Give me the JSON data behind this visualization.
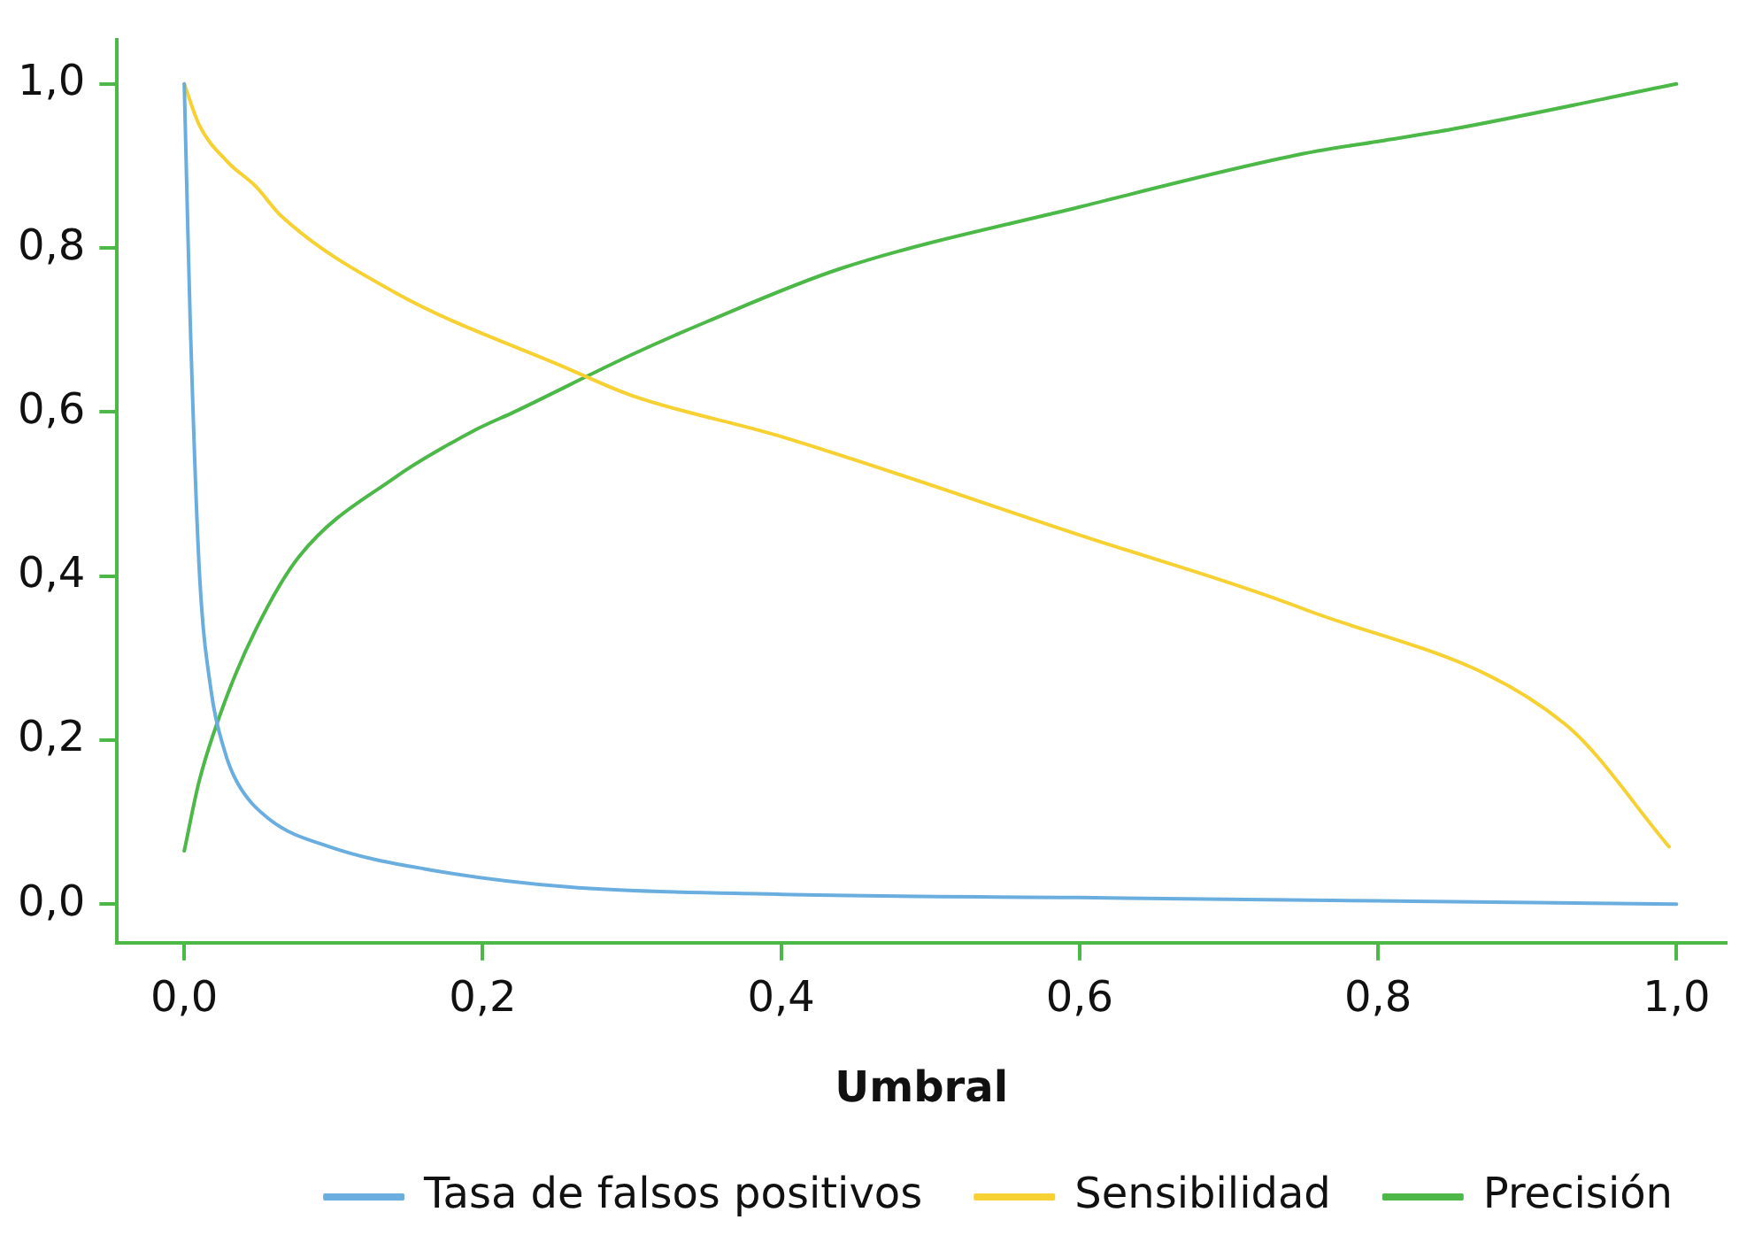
{
  "chart_data": {
    "type": "line",
    "xlabel": "Umbral",
    "xlim": [
      -0.045,
      1.033
    ],
    "ylim": [
      -0.047,
      1.054
    ],
    "xticks": [
      {
        "value": 0,
        "label": "0,0"
      },
      {
        "value": 0.2,
        "label": "0,2"
      },
      {
        "value": 0.4,
        "label": "0,4"
      },
      {
        "value": 0.6,
        "label": "0,6"
      },
      {
        "value": 0.8,
        "label": "0,8"
      },
      {
        "value": 1,
        "label": "1,0"
      }
    ],
    "yticks": [
      {
        "value": 0,
        "label": "0,0"
      },
      {
        "value": 0.2,
        "label": "0,2"
      },
      {
        "value": 0.4,
        "label": "0,4"
      },
      {
        "value": 0.6,
        "label": "0,6"
      },
      {
        "value": 0.8,
        "label": "0,8"
      },
      {
        "value": 1,
        "label": "1,0"
      }
    ],
    "grid": false,
    "legend": "bottom",
    "marker": "none",
    "line_style": "solid",
    "series": [
      {
        "name": "Tasa de falsos positivos",
        "color": "#6aaee0",
        "x": [
          0,
          0.002,
          0.004,
          0.01,
          0.018,
          0.027,
          0.035,
          0.056,
          0.099,
          0.161,
          0.257,
          0.4,
          0.6,
          0.8,
          1.0
        ],
        "values": [
          1.0,
          0.85,
          0.71,
          0.41,
          0.26,
          0.187,
          0.15,
          0.105,
          0.069,
          0.043,
          0.021,
          0.012,
          0.008,
          0.004,
          0.0
        ]
      },
      {
        "name": "Sensibilidad",
        "color": "#f7d031",
        "x": [
          0,
          0.01,
          0.029,
          0.048,
          0.065,
          0.141,
          0.257,
          0.3,
          0.4,
          0.6,
          0.75,
          0.925,
          0.995
        ],
        "values": [
          1.0,
          0.95,
          0.905,
          0.875,
          0.839,
          0.746,
          0.653,
          0.62,
          0.57,
          0.45,
          0.36,
          0.22,
          0.07
        ]
      },
      {
        "name": "Precisión",
        "color": "#4cb848",
        "x": [
          0,
          0.01,
          0.027,
          0.048,
          0.077,
          0.141,
          0.196,
          0.221,
          0.3,
          0.35,
          0.44,
          0.6,
          0.75,
          0.8,
          0.85,
          1.0
        ],
        "values": [
          0.065,
          0.15,
          0.246,
          0.335,
          0.424,
          0.52,
          0.579,
          0.6,
          0.67,
          0.71,
          0.775,
          0.85,
          0.915,
          0.93,
          0.945,
          1.0
        ]
      }
    ]
  }
}
